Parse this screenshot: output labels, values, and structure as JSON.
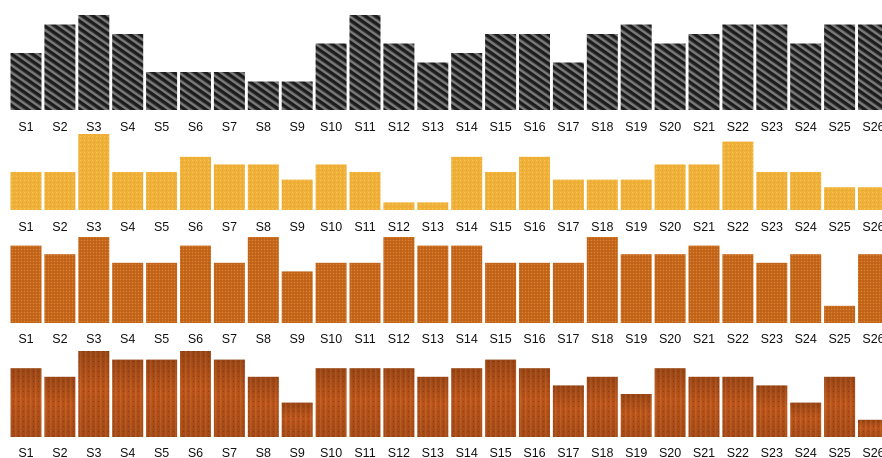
{
  "chart_data": [
    {
      "type": "bar",
      "texture": "carbon-fiber",
      "colors": {
        "base": "#1c1c1c",
        "light": "#7a7a7a",
        "mid": "#3a3a3a"
      },
      "categories": [
        "S1",
        "S2",
        "S3",
        "S4",
        "S5",
        "S6",
        "S7",
        "S8",
        "S9",
        "S10",
        "S11",
        "S12",
        "S13",
        "S14",
        "S15",
        "S16",
        "S17",
        "S18",
        "S19",
        "S20",
        "S21",
        "S22",
        "S23",
        "S24",
        "S25",
        "S26"
      ],
      "values": [
        6,
        9,
        10,
        8,
        4,
        4,
        4,
        3,
        3,
        7,
        10,
        7,
        5,
        6,
        8,
        8,
        5,
        8,
        9,
        7,
        8,
        9,
        9,
        7,
        9,
        9
      ],
      "ylim": [
        0,
        10
      ]
    },
    {
      "type": "bar",
      "texture": "gold-foil",
      "colors": {
        "base": "#f0b13a",
        "light": "#f7c75a",
        "dark": "#e3a22c"
      },
      "categories": [
        "S1",
        "S2",
        "S3",
        "S4",
        "S5",
        "S6",
        "S7",
        "S8",
        "S9",
        "S10",
        "S11",
        "S12",
        "S13",
        "S14",
        "S15",
        "S16",
        "S17",
        "S18",
        "S19",
        "S20",
        "S21",
        "S22",
        "S23",
        "S24",
        "S25",
        "S26"
      ],
      "values": [
        5,
        5,
        10,
        5,
        5,
        7,
        6,
        6,
        4,
        6,
        5,
        1,
        1,
        7,
        5,
        7,
        4,
        4,
        4,
        6,
        6,
        9,
        5,
        5,
        3,
        3
      ],
      "ylim": [
        0,
        10
      ]
    },
    {
      "type": "bar",
      "texture": "copper",
      "colors": {
        "base": "#c7681c",
        "light": "#d98632",
        "dark": "#a95414"
      },
      "categories": [
        "S1",
        "S2",
        "S3",
        "S4",
        "S5",
        "S6",
        "S7",
        "S8",
        "S9",
        "S10",
        "S11",
        "S12",
        "S13",
        "S14",
        "S15",
        "S16",
        "S17",
        "S18",
        "S19",
        "S20",
        "S21",
        "S22",
        "S23",
        "S24",
        "S25",
        "S26"
      ],
      "values": [
        9,
        8,
        10,
        7,
        7,
        9,
        7,
        10,
        6,
        7,
        7,
        10,
        9,
        9,
        7,
        7,
        7,
        10,
        8,
        8,
        9,
        8,
        7,
        8,
        2,
        8
      ],
      "ylim": [
        0,
        10
      ]
    },
    {
      "type": "bar",
      "texture": "rusted-copper",
      "colors": {
        "base": "#b8521a",
        "light": "#d0702c",
        "dark": "#7d3410"
      },
      "categories": [
        "S1",
        "S2",
        "S3",
        "S4",
        "S5",
        "S6",
        "S7",
        "S8",
        "S9",
        "S10",
        "S11",
        "S12",
        "S13",
        "S14",
        "S15",
        "S16",
        "S17",
        "S18",
        "S19",
        "S20",
        "S21",
        "S22",
        "S23",
        "S24",
        "S25",
        "S26"
      ],
      "values": [
        8,
        7,
        10,
        9,
        9,
        10,
        9,
        7,
        4,
        8,
        8,
        8,
        7,
        8,
        9,
        8,
        6,
        7,
        5,
        8,
        7,
        7,
        6,
        4,
        7,
        2
      ],
      "ylim": [
        0,
        10
      ]
    }
  ]
}
